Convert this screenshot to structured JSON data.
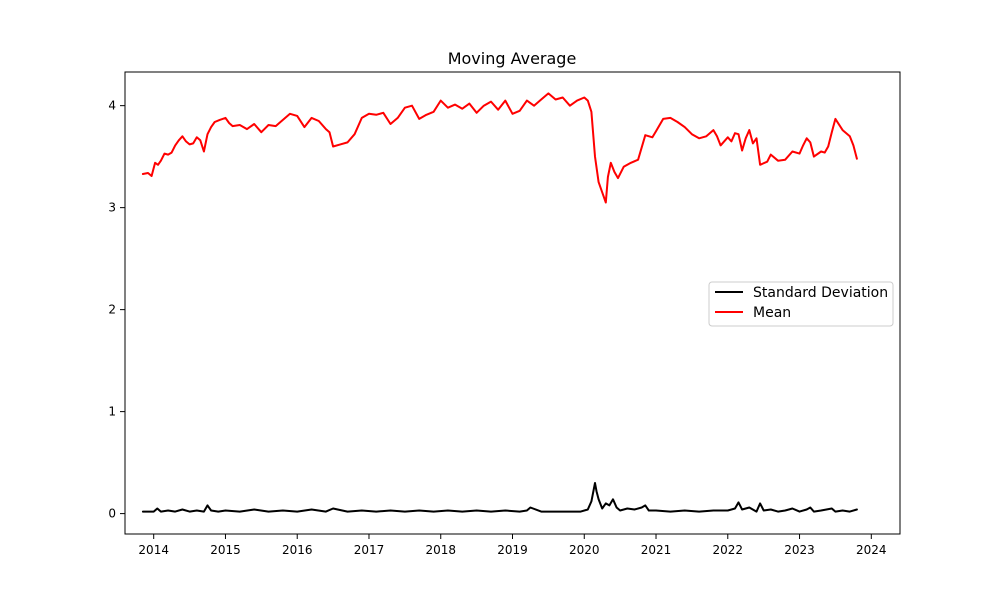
{
  "chart_data": {
    "type": "line",
    "title": "Moving Average",
    "xlabel": "",
    "ylabel": "",
    "xlim": [
      2013.6,
      2024.4
    ],
    "ylim": [
      -0.2,
      4.33
    ],
    "x_ticks": [
      2014,
      2015,
      2016,
      2017,
      2018,
      2019,
      2020,
      2021,
      2022,
      2023,
      2024
    ],
    "x_tick_labels": [
      "2014",
      "2015",
      "2016",
      "2017",
      "2018",
      "2019",
      "2020",
      "2021",
      "2022",
      "2023",
      "2024"
    ],
    "y_ticks": [
      0,
      1,
      2,
      3,
      4
    ],
    "y_tick_labels": [
      "0",
      "1",
      "2",
      "3",
      "4"
    ],
    "grid": false,
    "legend_position": "center-right",
    "series": [
      {
        "name": "Standard Deviation",
        "color": "#000000",
        "x": [
          2013.85,
          2013.95,
          2014.0,
          2014.05,
          2014.1,
          2014.2,
          2014.3,
          2014.4,
          2014.5,
          2014.6,
          2014.7,
          2014.75,
          2014.8,
          2014.9,
          2015.0,
          2015.2,
          2015.4,
          2015.6,
          2015.8,
          2016.0,
          2016.2,
          2016.4,
          2016.5,
          2016.7,
          2016.9,
          2017.1,
          2017.3,
          2017.5,
          2017.7,
          2017.9,
          2018.1,
          2018.3,
          2018.5,
          2018.7,
          2018.9,
          2019.1,
          2019.2,
          2019.25,
          2019.4,
          2019.6,
          2019.8,
          2019.95,
          2020.05,
          2020.1,
          2020.15,
          2020.17,
          2020.2,
          2020.25,
          2020.3,
          2020.35,
          2020.4,
          2020.45,
          2020.5,
          2020.6,
          2020.7,
          2020.8,
          2020.85,
          2020.9,
          2021.0,
          2021.2,
          2021.4,
          2021.6,
          2021.8,
          2022.0,
          2022.1,
          2022.15,
          2022.2,
          2022.3,
          2022.4,
          2022.45,
          2022.5,
          2022.6,
          2022.7,
          2022.8,
          2022.9,
          2023.0,
          2023.1,
          2023.15,
          2023.2,
          2023.3,
          2023.45,
          2023.5,
          2023.6,
          2023.7,
          2023.8
        ],
        "y": [
          0.02,
          0.02,
          0.02,
          0.05,
          0.02,
          0.03,
          0.02,
          0.04,
          0.02,
          0.03,
          0.02,
          0.08,
          0.03,
          0.02,
          0.03,
          0.02,
          0.04,
          0.02,
          0.03,
          0.02,
          0.04,
          0.02,
          0.05,
          0.02,
          0.03,
          0.02,
          0.03,
          0.02,
          0.03,
          0.02,
          0.03,
          0.02,
          0.03,
          0.02,
          0.03,
          0.02,
          0.03,
          0.06,
          0.02,
          0.02,
          0.02,
          0.02,
          0.04,
          0.12,
          0.3,
          0.22,
          0.14,
          0.05,
          0.1,
          0.08,
          0.14,
          0.06,
          0.03,
          0.05,
          0.04,
          0.06,
          0.08,
          0.03,
          0.03,
          0.02,
          0.03,
          0.02,
          0.03,
          0.03,
          0.05,
          0.11,
          0.04,
          0.06,
          0.02,
          0.1,
          0.03,
          0.04,
          0.02,
          0.03,
          0.05,
          0.02,
          0.04,
          0.06,
          0.02,
          0.03,
          0.05,
          0.02,
          0.03,
          0.02,
          0.04
        ]
      },
      {
        "name": "Mean",
        "color": "#ff0000",
        "x": [
          2013.85,
          2013.92,
          2013.97,
          2014.02,
          2014.06,
          2014.1,
          2014.15,
          2014.2,
          2014.25,
          2014.3,
          2014.35,
          2014.4,
          2014.45,
          2014.5,
          2014.55,
          2014.6,
          2014.65,
          2014.7,
          2014.75,
          2014.8,
          2014.85,
          2014.92,
          2015.0,
          2015.05,
          2015.1,
          2015.2,
          2015.3,
          2015.4,
          2015.5,
          2015.6,
          2015.7,
          2015.8,
          2015.9,
          2016.0,
          2016.1,
          2016.2,
          2016.3,
          2016.4,
          2016.45,
          2016.5,
          2016.6,
          2016.7,
          2016.8,
          2016.9,
          2017.0,
          2017.1,
          2017.2,
          2017.3,
          2017.4,
          2017.5,
          2017.6,
          2017.7,
          2017.8,
          2017.9,
          2018.0,
          2018.1,
          2018.2,
          2018.3,
          2018.4,
          2018.5,
          2018.6,
          2018.7,
          2018.8,
          2018.9,
          2019.0,
          2019.1,
          2019.2,
          2019.3,
          2019.4,
          2019.5,
          2019.6,
          2019.7,
          2019.8,
          2019.9,
          2020.0,
          2020.05,
          2020.1,
          2020.15,
          2020.2,
          2020.25,
          2020.3,
          2020.33,
          2020.37,
          2020.42,
          2020.47,
          2020.55,
          2020.65,
          2020.75,
          2020.85,
          2020.95,
          2021.0,
          2021.1,
          2021.2,
          2021.3,
          2021.4,
          2021.5,
          2021.6,
          2021.7,
          2021.8,
          2021.85,
          2021.9,
          2022.0,
          2022.05,
          2022.1,
          2022.15,
          2022.2,
          2022.25,
          2022.3,
          2022.35,
          2022.4,
          2022.45,
          2022.55,
          2022.6,
          2022.7,
          2022.8,
          2022.9,
          2023.0,
          2023.05,
          2023.1,
          2023.15,
          2023.2,
          2023.3,
          2023.35,
          2023.4,
          2023.45,
          2023.5,
          2023.6,
          2023.7,
          2023.75,
          2023.8
        ],
        "y": [
          3.33,
          3.34,
          3.31,
          3.44,
          3.42,
          3.46,
          3.53,
          3.52,
          3.54,
          3.61,
          3.66,
          3.7,
          3.65,
          3.62,
          3.63,
          3.69,
          3.66,
          3.55,
          3.72,
          3.79,
          3.84,
          3.86,
          3.88,
          3.83,
          3.8,
          3.81,
          3.77,
          3.82,
          3.74,
          3.81,
          3.8,
          3.86,
          3.92,
          3.9,
          3.79,
          3.88,
          3.85,
          3.77,
          3.74,
          3.6,
          3.62,
          3.64,
          3.72,
          3.88,
          3.92,
          3.91,
          3.93,
          3.82,
          3.88,
          3.98,
          4.0,
          3.87,
          3.91,
          3.94,
          4.05,
          3.98,
          4.01,
          3.97,
          4.02,
          3.93,
          4.0,
          4.04,
          3.96,
          4.05,
          3.92,
          3.95,
          4.05,
          4.0,
          4.06,
          4.12,
          4.06,
          4.08,
          4.0,
          4.05,
          4.08,
          4.05,
          3.94,
          3.5,
          3.25,
          3.15,
          3.05,
          3.3,
          3.44,
          3.35,
          3.29,
          3.4,
          3.44,
          3.47,
          3.71,
          3.69,
          3.75,
          3.87,
          3.88,
          3.84,
          3.79,
          3.72,
          3.68,
          3.7,
          3.76,
          3.7,
          3.61,
          3.69,
          3.65,
          3.73,
          3.72,
          3.56,
          3.68,
          3.76,
          3.63,
          3.68,
          3.42,
          3.45,
          3.52,
          3.46,
          3.47,
          3.55,
          3.53,
          3.61,
          3.68,
          3.64,
          3.5,
          3.55,
          3.54,
          3.6,
          3.74,
          3.87,
          3.76,
          3.7,
          3.61,
          3.48
        ]
      }
    ]
  }
}
